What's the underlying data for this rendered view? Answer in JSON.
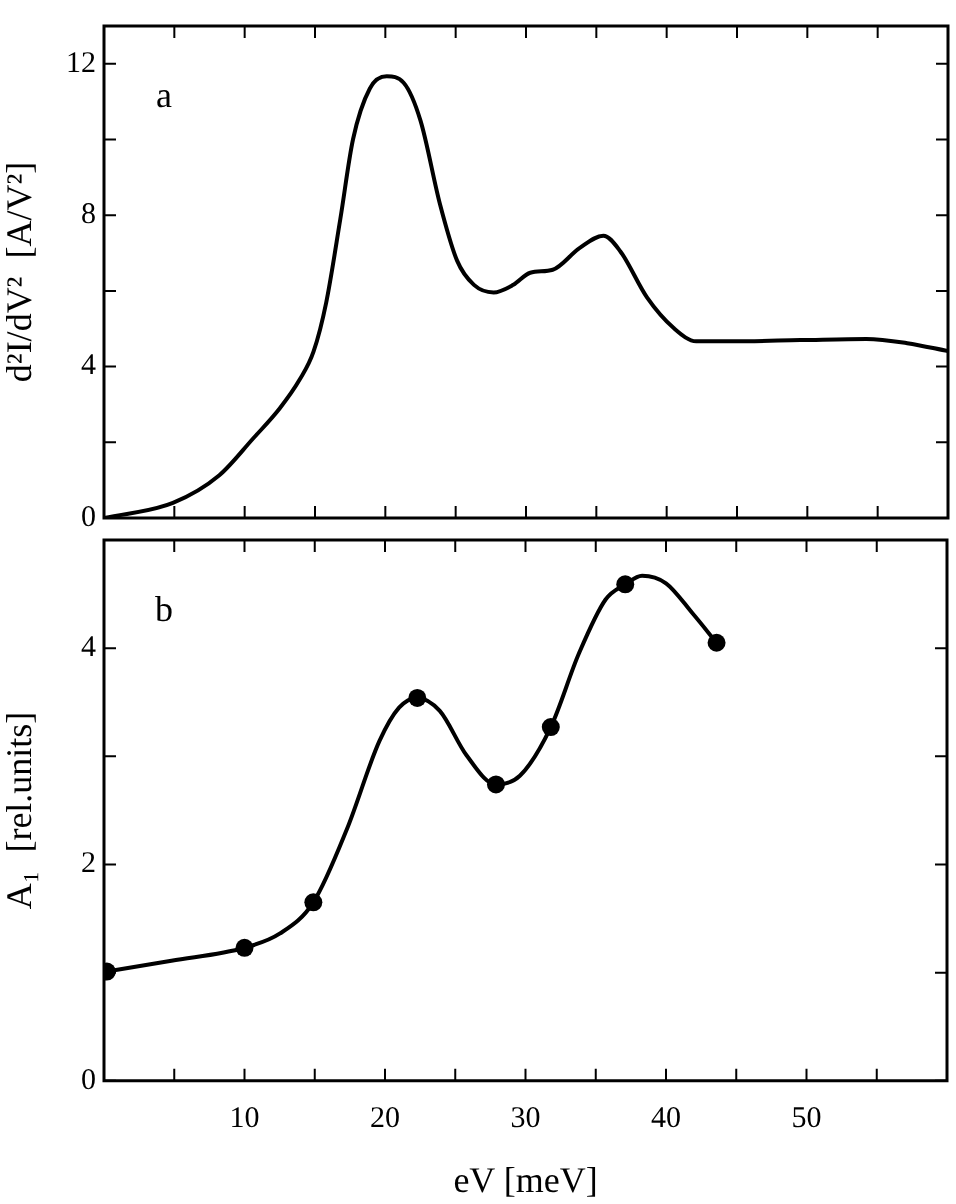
{
  "chart_data": [
    {
      "type": "line",
      "ylabel": "d²I/dV²  [A/V²]",
      "annotations": [
        "a"
      ],
      "tick_labels": "y",
      "marker": "none",
      "line_style": "solid",
      "grid": false,
      "xlim": [
        0,
        60
      ],
      "ylim": [
        0,
        13
      ],
      "xticks": [
        {
          "value": 5,
          "label": null
        },
        10,
        {
          "value": 15,
          "label": null
        },
        20,
        {
          "value": 25,
          "label": null
        },
        30,
        {
          "value": 35,
          "label": null
        },
        40,
        {
          "value": 45,
          "label": null
        },
        50,
        {
          "value": 55,
          "label": null
        }
      ],
      "yticks": [
        0,
        {
          "value": 2,
          "label": null
        },
        4,
        {
          "value": 6,
          "label": null
        },
        8,
        {
          "value": 10,
          "label": null
        },
        12
      ],
      "series": [
        {
          "color": "#000000",
          "x": [
            0,
            4.9,
            8.2,
            10.6,
            12.5,
            13.9,
            14.9,
            15.8,
            16.8,
            17.7,
            18.9,
            20.1,
            21.3,
            22.5,
            23.9,
            25.1,
            26.3,
            27.7,
            29.1,
            30.3,
            31.9,
            33.8,
            35.5,
            36.7,
            38.6,
            40.5,
            42.1,
            44.7,
            49.5,
            54.2,
            57.1,
            60
          ],
          "values": [
            0,
            0.4,
            1.13,
            2.1,
            2.9,
            3.65,
            4.4,
            5.7,
            7.9,
            10.0,
            11.35,
            11.67,
            11.5,
            10.5,
            8.27,
            6.8,
            6.16,
            5.96,
            6.16,
            6.48,
            6.56,
            7.13,
            7.46,
            7.05,
            5.83,
            5.02,
            4.67,
            4.67,
            4.7,
            4.73,
            4.62,
            4.41
          ]
        }
      ]
    },
    {
      "type": "line",
      "xlabel": "eV [meV]",
      "ylabel": "A₁  [rel.units]",
      "annotations": [
        "b"
      ],
      "line_style": "solid",
      "grid": false,
      "xlim": [
        0,
        60
      ],
      "ylim": [
        0,
        5
      ],
      "xticks": [
        {
          "value": 5,
          "label": null
        },
        10,
        {
          "value": 15,
          "label": null
        },
        20,
        {
          "value": 25,
          "label": null
        },
        30,
        {
          "value": 35,
          "label": null
        },
        40,
        {
          "value": 45,
          "label": null
        },
        50,
        {
          "value": 55,
          "label": null
        }
      ],
      "yticks": [
        0,
        {
          "value": 1,
          "label": null
        },
        2,
        {
          "value": 3,
          "label": null
        },
        4
      ],
      "series": [
        {
          "type": "scatter",
          "marker": "circle",
          "color": "#000000",
          "x": [
            0.2,
            10.0,
            14.9,
            22.3,
            27.9,
            31.8,
            37.1,
            43.6
          ],
          "values": [
            1.01,
            1.23,
            1.65,
            3.54,
            2.74,
            3.27,
            4.59,
            4.05
          ]
        },
        {
          "type": "line",
          "marker": "none",
          "color": "#000000",
          "x": [
            0.2,
            4.8,
            10.0,
            12.5,
            14.9,
            17.3,
            19.6,
            21.0,
            22.3,
            23.9,
            25.8,
            27.9,
            29.6,
            31.8,
            33.8,
            35.7,
            37.1,
            38.3,
            40.0,
            41.9,
            43.6
          ],
          "values": [
            1.01,
            1.11,
            1.23,
            1.36,
            1.65,
            2.33,
            3.14,
            3.45,
            3.54,
            3.42,
            3.01,
            2.74,
            2.82,
            3.27,
            3.95,
            4.45,
            4.59,
            4.67,
            4.6,
            4.32,
            4.05
          ]
        }
      ]
    }
  ]
}
